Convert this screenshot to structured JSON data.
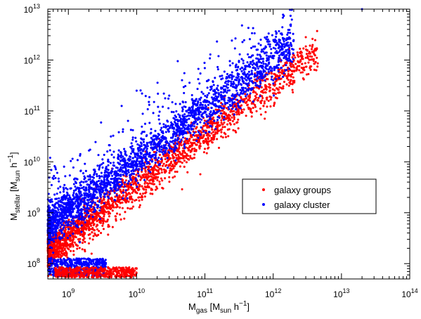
{
  "chart_data": {
    "type": "scatter",
    "title": "",
    "xlabel": {
      "main": "M",
      "sub": "gas",
      "bracket_open": "[M",
      "unit_sub": "sun",
      "unit_h": " h",
      "unit_sup": "−1",
      "bracket_close": "]"
    },
    "ylabel": {
      "main": "M",
      "sub": "stellar",
      "bracket_open": "[M",
      "unit_sub": "sun",
      "unit_h": " h",
      "unit_sup": "−1",
      "bracket_close": "]"
    },
    "xscale": "log",
    "yscale": "log",
    "xlim": [
      500000000,
      100000000000000
    ],
    "ylim": [
      50000000,
      10000000000000
    ],
    "xticks": [
      {
        "value": 1000000000,
        "base": "10",
        "exp": "9"
      },
      {
        "value": 10000000000,
        "base": "10",
        "exp": "10"
      },
      {
        "value": 100000000000,
        "base": "10",
        "exp": "11"
      },
      {
        "value": 1000000000000,
        "base": "10",
        "exp": "12"
      },
      {
        "value": 10000000000000,
        "base": "10",
        "exp": "13"
      },
      {
        "value": 100000000000000,
        "base": "10",
        "exp": "14"
      }
    ],
    "yticks": [
      {
        "value": 100000000,
        "base": "10",
        "exp": "8"
      },
      {
        "value": 1000000000,
        "base": "10",
        "exp": "9"
      },
      {
        "value": 10000000000,
        "base": "10",
        "exp": "10"
      },
      {
        "value": 100000000000,
        "base": "10",
        "exp": "11"
      },
      {
        "value": 1000000000000,
        "base": "10",
        "exp": "12"
      },
      {
        "value": 10000000000000,
        "base": "10",
        "exp": "13"
      }
    ],
    "grid": false,
    "legend": {
      "placement": "center-right",
      "entries": [
        "galaxy groups",
        "galaxy cluster"
      ]
    },
    "series": [
      {
        "name": "galaxy groups",
        "color": "#ff0000",
        "trend": {
          "slope": 1.0,
          "intercept": -0.45,
          "scatter": 0.18,
          "xmin": 8.7,
          "xmax": 12.65,
          "density": "high"
        },
        "x": [
          3100000000000.0,
          3600000000000.0,
          4500000000000.0,
          1800000000000.0,
          1200000000000.0,
          800000000000.0,
          550000000000.0,
          300000000000.0,
          200000000000.0,
          150000000000.0,
          100000000000.0,
          70000000000.0,
          50000000000.0,
          30000000000.0,
          20000000000.0,
          12000000000.0,
          8000000000.0,
          5000000000.0,
          3000000000.0,
          2000000000.0,
          1200000000.0,
          800000000.0,
          600000000.0
        ],
        "y": [
          520000000000.0,
          750000000000.0,
          860000000000.0,
          340000000000.0,
          260000000000.0,
          180000000000.0,
          120000000000.0,
          60000000000.0,
          35000000000.0,
          28000000000.0,
          18000000000.0,
          12000000000.0,
          8000000000.0,
          5000000000.0,
          3000000000.0,
          1800000000.0,
          1200000000.0,
          700000000.0,
          400000000.0,
          250000000.0,
          150000000.0,
          100000000.0,
          70000000.0
        ]
      },
      {
        "name": "galaxy cluster",
        "color": "#0000ff",
        "trend": {
          "slope": 1.0,
          "intercept": 0.05,
          "scatter": 0.22,
          "xmin": 8.7,
          "xmax": 12.3,
          "density": "high"
        },
        "x": [
          20000000000000.0,
          1800000000000.0,
          1300000000000.0,
          1000000000000.0,
          40000000000.0,
          10000000000.0,
          300000000000.0,
          150000000000.0,
          80000000000.0,
          50000000000.0,
          30000000000.0,
          15000000000.0,
          8000000000.0,
          5000000000.0,
          3000000000.0,
          2000000000.0,
          1200000000.0,
          800000000.0,
          600000000.0,
          18000000000.0,
          12000000000.0,
          30000000000.0
        ],
        "y": [
          10000000000000.0,
          800000000000.0,
          700000000000.0,
          400000000000.0,
          950000000000.0,
          250000000000.0,
          100000000000.0,
          60000000000.0,
          40000000000.0,
          25000000000.0,
          15000000000.0,
          8000000000.0,
          5000000000.0,
          3000000000.0,
          2000000000.0,
          1200000000.0,
          700000000.0,
          400000000.0,
          300000000.0,
          150000000000.0,
          220000000000.0,
          200000000000.0
        ]
      }
    ]
  }
}
